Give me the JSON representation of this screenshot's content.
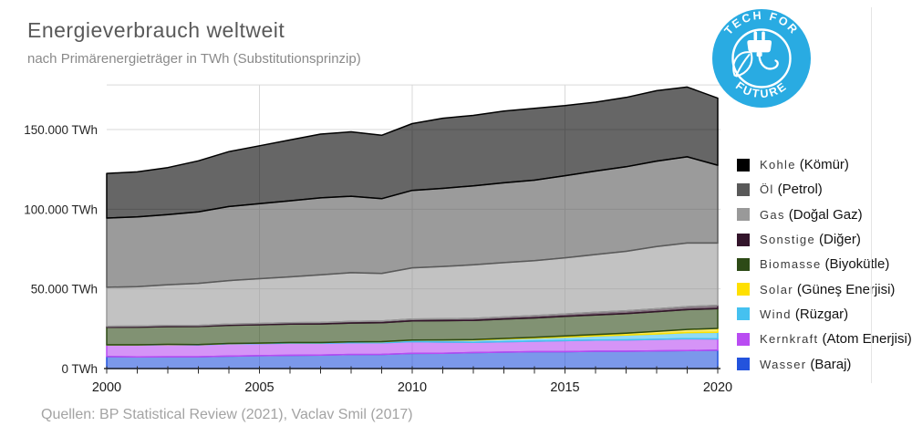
{
  "header": {
    "title": "Energieverbrauch weltweit",
    "subtitle": "nach Primärenergieträger in TWh (Substitutionsprinzip)"
  },
  "logo": {
    "top_text": "TECH FOR",
    "bottom_text": "FUTURE",
    "circle_color": "#29abe2"
  },
  "footer": {
    "sources": "Quellen: BP Statistical Review (2021), Vaclav Smil (2017)"
  },
  "chart_data": {
    "type": "area",
    "stacked": true,
    "title": "Energieverbrauch weltweit",
    "xlabel": "",
    "ylabel": "TWh",
    "x": [
      2000,
      2001,
      2002,
      2003,
      2004,
      2005,
      2006,
      2007,
      2008,
      2009,
      2010,
      2011,
      2012,
      2013,
      2014,
      2015,
      2016,
      2017,
      2018,
      2019,
      2020
    ],
    "x_tick_labels": [
      "2000",
      "2005",
      "2010",
      "2015",
      "2020"
    ],
    "x_tick_values": [
      2000,
      2005,
      2010,
      2015,
      2020
    ],
    "x_gridline_values": [
      2005,
      2010,
      2015
    ],
    "y_tick_labels": [
      "0 TWh",
      "50.000 TWh",
      "100.000 TWh",
      "150.000 TWh"
    ],
    "y_tick_values": [
      0,
      50000,
      100000,
      150000
    ],
    "ylim": [
      0,
      178000
    ],
    "grid": true,
    "legend_position": "right",
    "fill_opacity": 0.6,
    "series_note": "listed bottom-to-top of stack; legend shows reverse order; values in TWh",
    "series": [
      {
        "id": "wasser",
        "label_de": "Wasser",
        "label_tr": "(Baraj)",
        "color": "#2353dd",
        "values": [
          7500,
          7300,
          7400,
          7400,
          7800,
          8100,
          8300,
          8400,
          8800,
          8900,
          9500,
          9600,
          10000,
          10300,
          10600,
          10600,
          10900,
          10900,
          11100,
          11300,
          11500
        ]
      },
      {
        "id": "kernkraft",
        "label_de": "Kernkraft",
        "label_tr": "(Atom Enerjisi)",
        "color": "#b94cf2",
        "values": [
          7300,
          7500,
          7600,
          7500,
          7700,
          7600,
          7650,
          7450,
          7380,
          7230,
          7370,
          7020,
          6500,
          6550,
          6600,
          6930,
          7000,
          7100,
          7200,
          7450,
          7100
        ]
      },
      {
        "id": "wind",
        "label_de": "Wind",
        "label_tr": "(Rüzgar)",
        "color": "#45c1f0",
        "values": [
          83,
          100,
          140,
          170,
          220,
          280,
          350,
          450,
          580,
          730,
          960,
          1200,
          1400,
          1700,
          1900,
          2250,
          2550,
          3000,
          3400,
          3800,
          4200
        ]
      },
      {
        "id": "solar",
        "label_de": "Solar",
        "label_tr": "(Güneş Enerjisi)",
        "color": "#ffe000",
        "values": [
          3,
          4,
          5,
          7,
          9,
          12,
          16,
          21,
          34,
          55,
          90,
          160,
          250,
          350,
          500,
          690,
          900,
          1200,
          1600,
          2000,
          2400
        ]
      },
      {
        "id": "biomasse",
        "label_de": "Biomasse",
        "label_tr": "(Biyokütle)",
        "color": "#2d4a16",
        "values": [
          11000,
          11100,
          11200,
          11300,
          11400,
          11500,
          11600,
          11700,
          11800,
          11900,
          12000,
          12050,
          12100,
          12150,
          12200,
          12250,
          12300,
          12350,
          12400,
          12450,
          12500
        ]
      },
      {
        "id": "sonstige",
        "label_de": "Sonstige",
        "label_tr": "(Diğer)",
        "color": "#33152b",
        "values": [
          600,
          630,
          660,
          700,
          740,
          800,
          850,
          900,
          950,
          1000,
          1100,
          1150,
          1250,
          1300,
          1400,
          1500,
          1600,
          1700,
          1800,
          1900,
          2000
        ]
      },
      {
        "id": "gas",
        "label_de": "Gas",
        "label_tr": "(Doğal Gaz)",
        "color": "#999999",
        "values": [
          24500,
          24800,
          25600,
          26400,
          27300,
          28100,
          28800,
          29900,
          30600,
          29900,
          32200,
          32900,
          33600,
          34100,
          34500,
          35300,
          36300,
          37300,
          39100,
          39900,
          39100
        ]
      },
      {
        "id": "oel",
        "label_de": "Öl",
        "label_tr": "(Petrol)",
        "color": "#595959",
        "values": [
          43500,
          43700,
          44000,
          44900,
          46500,
          47100,
          47700,
          48300,
          48000,
          46900,
          48600,
          49000,
          49600,
          50100,
          50500,
          51500,
          52400,
          53100,
          53600,
          54100,
          48800
        ]
      },
      {
        "id": "kohle",
        "label_de": "Kohle",
        "label_tr": "(Kömür)",
        "color": "#000000",
        "values": [
          28000,
          28300,
          29500,
          32000,
          34500,
          36300,
          38200,
          40000,
          40400,
          39800,
          41900,
          44000,
          44200,
          45000,
          45100,
          44000,
          43200,
          43500,
          44200,
          43800,
          42100
        ]
      }
    ]
  }
}
